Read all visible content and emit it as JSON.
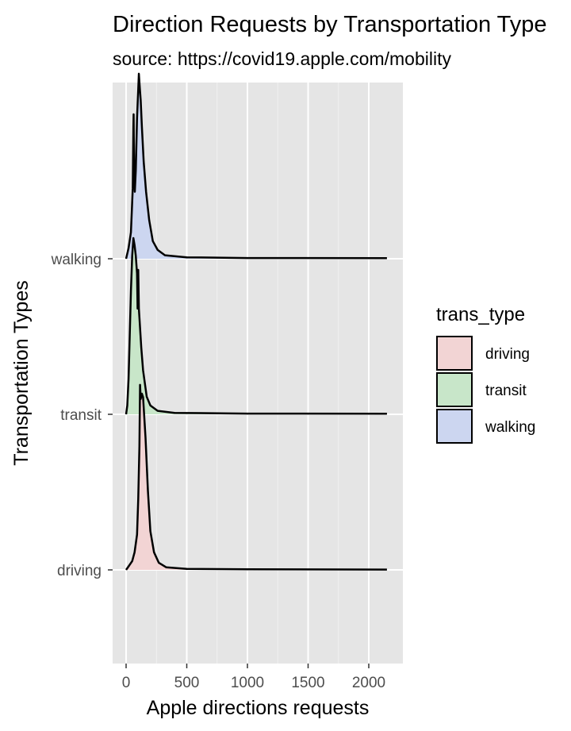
{
  "chart_data": {
    "type": "ridgeline",
    "title": "Direction Requests by Transportation Type",
    "subtitle": "source: https://covid19.apple.com/mobility",
    "xlabel": "Apple directions requests",
    "ylabel": "Transportation Types",
    "xlim": [
      -100,
      2250
    ],
    "x_ticks": [
      0,
      500,
      1000,
      1500,
      2000
    ],
    "x_tick_labels": [
      "0",
      "500",
      "1000",
      "1500",
      "2000"
    ],
    "categories": [
      "driving",
      "transit",
      "walking"
    ],
    "grid": true,
    "legend": {
      "title": "trans_type",
      "placement": "right",
      "entries": [
        "driving",
        "transit",
        "walking"
      ]
    },
    "series": [
      {
        "name": "driving",
        "color": "#f2d4d4",
        "points": [
          [
            0,
            0
          ],
          [
            20,
            0.02
          ],
          [
            50,
            0.05
          ],
          [
            70,
            0.1
          ],
          [
            90,
            0.2
          ],
          [
            100,
            0.4
          ],
          [
            110,
            0.7
          ],
          [
            115,
            1.05
          ],
          [
            120,
            0.97
          ],
          [
            130,
            1.0
          ],
          [
            140,
            0.98
          ],
          [
            160,
            0.75
          ],
          [
            180,
            0.45
          ],
          [
            200,
            0.22
          ],
          [
            230,
            0.1
          ],
          [
            270,
            0.04
          ],
          [
            330,
            0.015
          ],
          [
            500,
            0.006
          ],
          [
            1000,
            0.003
          ],
          [
            2150,
            0.002
          ]
        ]
      },
      {
        "name": "transit",
        "color": "#c8e6c9",
        "points": [
          [
            0,
            0
          ],
          [
            10,
            0.05
          ],
          [
            20,
            0.2
          ],
          [
            30,
            0.45
          ],
          [
            40,
            0.7
          ],
          [
            50,
            0.9
          ],
          [
            60,
            1.0
          ],
          [
            70,
            0.96
          ],
          [
            80,
            0.9
          ],
          [
            90,
            0.8
          ],
          [
            95,
            0.6
          ],
          [
            100,
            0.82
          ],
          [
            105,
            0.6
          ],
          [
            110,
            0.55
          ],
          [
            125,
            0.38
          ],
          [
            140,
            0.25
          ],
          [
            170,
            0.1
          ],
          [
            200,
            0.05
          ],
          [
            260,
            0.02
          ],
          [
            400,
            0.008
          ],
          [
            1000,
            0.004
          ],
          [
            2150,
            0.003
          ]
        ]
      },
      {
        "name": "walking",
        "color": "#ccd6f0",
        "points": [
          [
            0,
            0
          ],
          [
            20,
            0.06
          ],
          [
            40,
            0.15
          ],
          [
            55,
            0.4
          ],
          [
            60,
            0.75
          ],
          [
            62,
            0.82
          ],
          [
            66,
            0.5
          ],
          [
            72,
            0.38
          ],
          [
            80,
            0.5
          ],
          [
            90,
            0.8
          ],
          [
            100,
            0.96
          ],
          [
            105,
            1.05
          ],
          [
            110,
            1.0
          ],
          [
            120,
            0.9
          ],
          [
            130,
            0.75
          ],
          [
            145,
            0.55
          ],
          [
            165,
            0.38
          ],
          [
            190,
            0.22
          ],
          [
            220,
            0.1
          ],
          [
            260,
            0.05
          ],
          [
            320,
            0.02
          ],
          [
            500,
            0.008
          ],
          [
            1000,
            0.004
          ],
          [
            2150,
            0.003
          ]
        ]
      }
    ]
  }
}
